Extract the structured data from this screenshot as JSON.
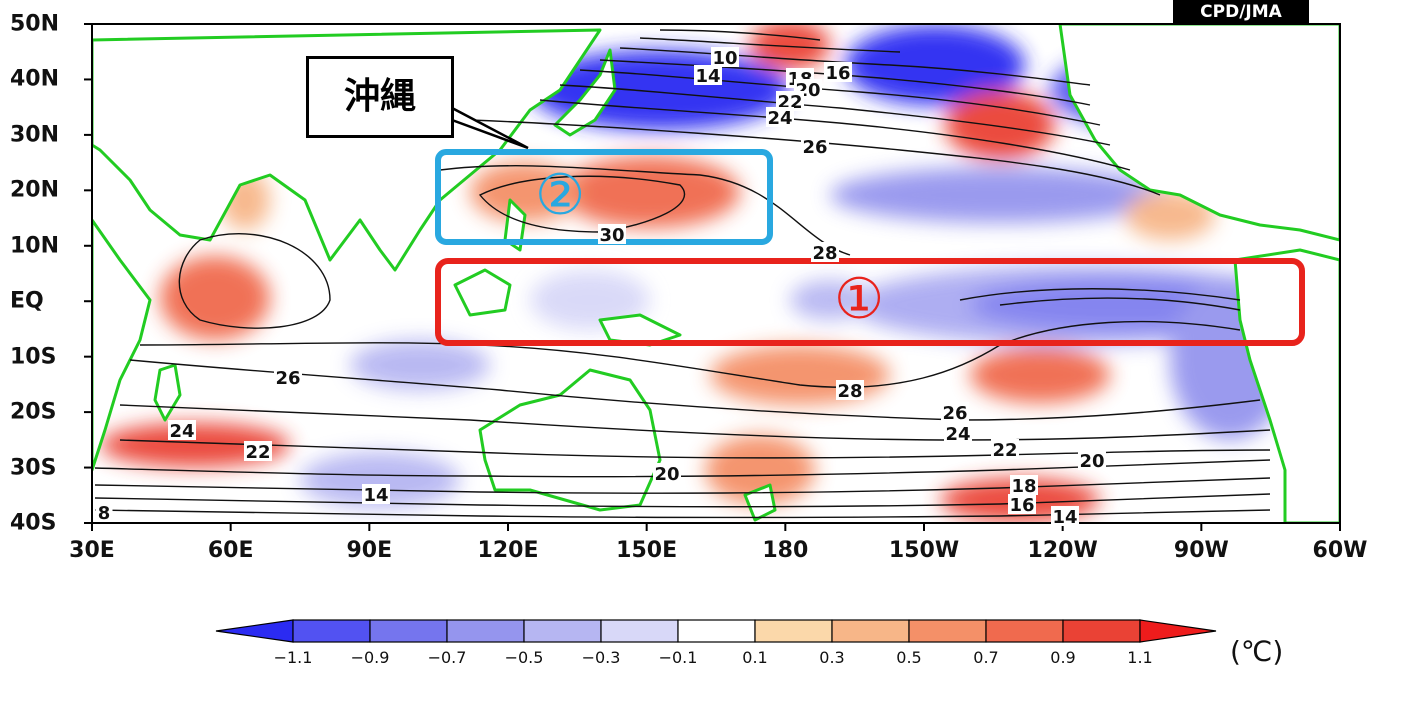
{
  "credit": "CPD/JMA",
  "callout_label": "沖縄",
  "markers": {
    "region1": "①",
    "region2": "②"
  },
  "axes": {
    "lat_labels": [
      "50N",
      "40N",
      "30N",
      "20N",
      "10N",
      "EQ",
      "10S",
      "20S",
      "30S",
      "40S"
    ],
    "lon_labels": [
      "30E",
      "60E",
      "90E",
      "120E",
      "150E",
      "180",
      "150W",
      "120W",
      "90W",
      "60W"
    ],
    "lat_range": [
      -40,
      50
    ],
    "lon_range_east": [
      30,
      300
    ]
  },
  "colorbar": {
    "ticks": [
      "−1.1",
      "−0.9",
      "−0.7",
      "−0.5",
      "−0.3",
      "−0.1",
      "0.1",
      "0.3",
      "0.5",
      "0.7",
      "0.9",
      "1.1"
    ],
    "colors": [
      "#2b2bf2",
      "#5252f2",
      "#7575ee",
      "#9595ee",
      "#b6b6f2",
      "#d8d8f8",
      "#ffffff",
      "#fbd8aa",
      "#f7b688",
      "#f49068",
      "#f06a4e",
      "#ea4235",
      "#ee1c1c"
    ],
    "unit": "(℃)"
  },
  "contour_labels": [
    "10",
    "14",
    "18",
    "16",
    "20",
    "22",
    "24",
    "26",
    "28",
    "30",
    "28",
    "26",
    "24",
    "22",
    "20",
    "18",
    "16",
    "14",
    "20",
    "26",
    "24",
    "22",
    "14",
    "8"
  ],
  "colors": {
    "coastline": "#22cc22",
    "contour": "#111111",
    "box1": "#e8231c",
    "box2": "#29a8e0",
    "warm": "#ea4235",
    "cool": "#2b2bf2"
  }
}
